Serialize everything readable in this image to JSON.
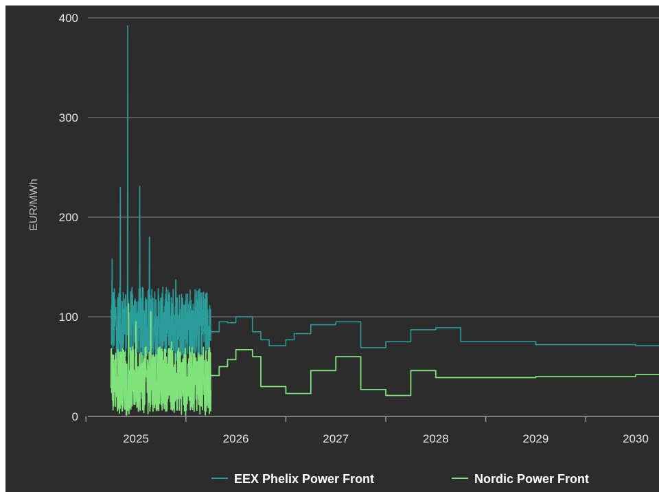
{
  "chart_data": {
    "type": "line",
    "title": "",
    "xlabel": "",
    "ylabel": "EUR/MWh",
    "ylim": [
      0,
      400
    ],
    "y_ticks": [
      0,
      100,
      200,
      300,
      400
    ],
    "x_tick_labels": [
      "2025",
      "2026",
      "2027",
      "2028",
      "2029",
      "2030"
    ],
    "grid": "horizontal",
    "legend_position": "bottom",
    "series": [
      {
        "name": "EEX Phelix Power Front",
        "color": "#2a9d9a",
        "history": {
          "from": "2024-10",
          "to": "2025-09",
          "range": [
            48,
            392
          ],
          "typical": [
            60,
            130
          ],
          "peaks": [
            {
              "x": "2024-12-01",
              "y": 392
            },
            {
              "x": "2024-11-05",
              "y": 230
            },
            {
              "x": "2025-01-15",
              "y": 231
            },
            {
              "x": "2025-02-20",
              "y": 180
            },
            {
              "x": "2024-10-05",
              "y": 158
            },
            {
              "x": "2025-05-25",
              "y": 137
            }
          ]
        },
        "forward": [
          {
            "x": "2025-09",
            "y": 87
          },
          {
            "x": "2025-10",
            "y": 85
          },
          {
            "x": "2025-11",
            "y": 95
          },
          {
            "x": "2025-12",
            "y": 94
          },
          {
            "x": "2026-01",
            "y": 100
          },
          {
            "x": "2026-03",
            "y": 85
          },
          {
            "x": "2026-04",
            "y": 77
          },
          {
            "x": "2026-05",
            "y": 71
          },
          {
            "x": "2026-07",
            "y": 77
          },
          {
            "x": "2026-08",
            "y": 83
          },
          {
            "x": "2026-10",
            "y": 92
          },
          {
            "x": "2027-01",
            "y": 95
          },
          {
            "x": "2027-04",
            "y": 69
          },
          {
            "x": "2027-07",
            "y": 75
          },
          {
            "x": "2027-10",
            "y": 87
          },
          {
            "x": "2028-01",
            "y": 89
          },
          {
            "x": "2028-04",
            "y": 75
          },
          {
            "x": "2029-01",
            "y": 72
          },
          {
            "x": "2030-01",
            "y": 71
          }
        ]
      },
      {
        "name": "Nordic Power Front",
        "color": "#7fe27a",
        "history": {
          "from": "2024-10",
          "to": "2025-09",
          "range": [
            1,
            115
          ],
          "typical": [
            5,
            70
          ],
          "peaks": [
            {
              "x": "2024-12-05",
              "y": 113
            },
            {
              "x": "2025-01-01",
              "y": 95
            },
            {
              "x": "2025-02-25",
              "y": 105
            },
            {
              "x": "2025-05-10",
              "y": 75
            }
          ]
        },
        "forward": [
          {
            "x": "2025-09",
            "y": 41
          },
          {
            "x": "2025-11",
            "y": 50
          },
          {
            "x": "2025-12",
            "y": 57
          },
          {
            "x": "2026-01",
            "y": 67
          },
          {
            "x": "2026-03",
            "y": 60
          },
          {
            "x": "2026-04",
            "y": 30
          },
          {
            "x": "2026-07",
            "y": 23
          },
          {
            "x": "2026-10",
            "y": 46
          },
          {
            "x": "2027-01",
            "y": 60
          },
          {
            "x": "2027-04",
            "y": 27
          },
          {
            "x": "2027-07",
            "y": 21
          },
          {
            "x": "2027-10",
            "y": 46
          },
          {
            "x": "2028-01",
            "y": 39
          },
          {
            "x": "2029-01",
            "y": 40
          },
          {
            "x": "2030-01",
            "y": 42
          }
        ]
      }
    ]
  }
}
